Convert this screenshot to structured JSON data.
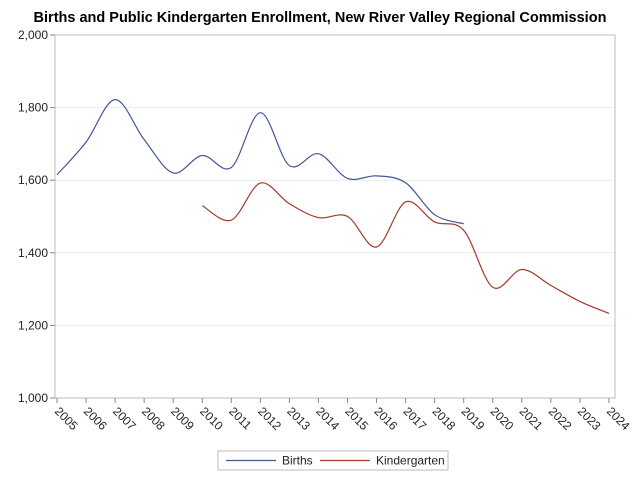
{
  "chart_data": {
    "type": "line",
    "title": "Births and Public Kindergarten Enrollment, New River Valley Regional Commission",
    "xlabel": "",
    "ylabel": "",
    "categories": [
      "2005",
      "2006",
      "2007",
      "2008",
      "2009",
      "2010",
      "2011",
      "2012",
      "2013",
      "2014",
      "2015",
      "2016",
      "2017",
      "2018",
      "2019",
      "2020",
      "2021",
      "2022",
      "2023",
      "2024"
    ],
    "ylim": [
      1000,
      2000
    ],
    "yticks": [
      1000,
      1200,
      1400,
      1600,
      1800,
      2000
    ],
    "ytick_labels": [
      "1,000",
      "1,200",
      "1,400",
      "1,600",
      "1,800",
      "2,000"
    ],
    "grid": true,
    "legend_position": "bottom-center",
    "series": [
      {
        "name": "Births",
        "color": "#445694",
        "values": [
          1615,
          1705,
          1822,
          1712,
          1620,
          1668,
          1635,
          1786,
          1640,
          1673,
          1605,
          1612,
          1593,
          1505,
          1480,
          null,
          null,
          null,
          null,
          null
        ]
      },
      {
        "name": "Kindergarten",
        "color": "#a23a2e",
        "values": [
          null,
          null,
          null,
          null,
          null,
          1530,
          1490,
          1592,
          1535,
          1497,
          1500,
          1416,
          1540,
          1485,
          1462,
          1305,
          1354,
          1310,
          1266,
          1233
        ]
      }
    ]
  }
}
